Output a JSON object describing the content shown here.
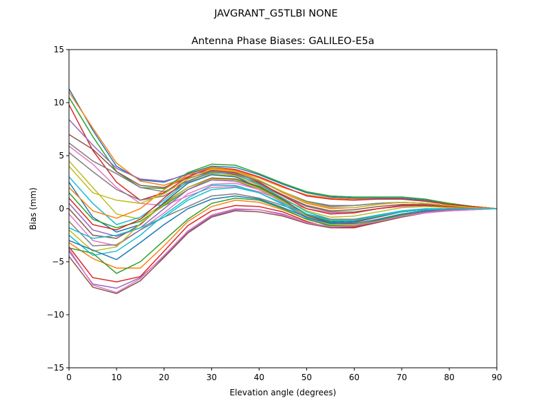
{
  "chart_data": {
    "type": "line",
    "suptitle": "JAVGRANT_G5TLBI NONE",
    "title": "Antenna Phase Biases: GALILEO-E5a",
    "xlabel": "Elevation angle (degrees)",
    "ylabel": "Bias (mm)",
    "xlim": [
      0,
      90
    ],
    "ylim": [
      -15,
      15
    ],
    "xticks": [
      "0",
      "10",
      "20",
      "30",
      "40",
      "50",
      "60",
      "70",
      "80",
      "90"
    ],
    "yticks": [
      "−15",
      "−10",
      "−5",
      "0",
      "5",
      "10",
      "15"
    ],
    "grid": false,
    "x": [
      0,
      5,
      10,
      15,
      20,
      25,
      30,
      35,
      40,
      45,
      50,
      55,
      60,
      65,
      70,
      75,
      80,
      85,
      90
    ],
    "colors": [
      "#1f77b4",
      "#ff7f0e",
      "#2ca02c",
      "#d62728",
      "#9467bd",
      "#8c564b",
      "#e377c2",
      "#7f7f7f",
      "#bcbd22",
      "#17becf"
    ],
    "series": [
      {
        "values": [
          11.3,
          7.4,
          4.0,
          2.7,
          2.5,
          3.3,
          4.0,
          3.9,
          3.2,
          2.3,
          1.5,
          1.1,
          1.0,
          1.0,
          1.0,
          0.8,
          0.5,
          0.2,
          0
        ]
      },
      {
        "values": [
          11.0,
          7.6,
          4.3,
          2.6,
          2.2,
          3.0,
          3.8,
          3.6,
          2.9,
          2.0,
          1.3,
          1.0,
          0.9,
          0.9,
          0.9,
          0.7,
          0.4,
          0.2,
          0
        ]
      },
      {
        "values": [
          10.5,
          6.8,
          3.5,
          2.0,
          1.9,
          3.4,
          4.2,
          4.1,
          3.3,
          2.4,
          1.6,
          1.2,
          1.1,
          1.1,
          1.1,
          0.9,
          0.5,
          0.2,
          0
        ]
      },
      {
        "values": [
          9.8,
          5.5,
          2.5,
          0.8,
          1.5,
          3.0,
          3.9,
          3.7,
          3.0,
          2.1,
          1.2,
          0.9,
          0.8,
          0.9,
          0.9,
          0.7,
          0.4,
          0.2,
          0
        ]
      },
      {
        "values": [
          8.4,
          6.0,
          3.8,
          2.8,
          2.6,
          3.2,
          3.6,
          3.4,
          2.6,
          1.6,
          0.6,
          0.2,
          0.3,
          0.5,
          0.6,
          0.5,
          0.3,
          0.1,
          0
        ]
      },
      {
        "values": [
          7.0,
          5.6,
          3.5,
          2.2,
          2.0,
          2.9,
          3.5,
          3.2,
          2.4,
          1.3,
          0.3,
          -0.2,
          -0.1,
          0.2,
          0.4,
          0.4,
          0.3,
          0.1,
          0
        ]
      },
      {
        "values": [
          5.9,
          4.2,
          2.0,
          0.5,
          0.3,
          1.2,
          2.0,
          2.1,
          1.6,
          0.8,
          0.0,
          -0.4,
          -0.3,
          0.0,
          0.2,
          0.3,
          0.2,
          0.1,
          0
        ]
      },
      {
        "values": [
          5.3,
          3.5,
          1.8,
          0.8,
          1.2,
          2.5,
          3.2,
          3.0,
          2.3,
          1.2,
          0.2,
          -0.3,
          -0.3,
          0.0,
          0.3,
          0.3,
          0.2,
          0.1,
          0
        ]
      },
      {
        "values": [
          4.5,
          2.0,
          -0.5,
          -1.0,
          0.5,
          2.4,
          3.3,
          3.1,
          2.2,
          1.0,
          -0.2,
          -0.8,
          -0.7,
          -0.3,
          0.1,
          0.2,
          0.1,
          0.1,
          0
        ]
      },
      {
        "values": [
          3.0,
          0.5,
          -1.5,
          -0.8,
          0.8,
          2.6,
          3.5,
          3.3,
          2.3,
          1.0,
          -0.3,
          -1.0,
          -1.0,
          -0.6,
          -0.2,
          0.0,
          0.0,
          0.0,
          0
        ]
      },
      {
        "values": [
          2.5,
          -0.8,
          -2.2,
          -1.5,
          0.6,
          2.4,
          3.2,
          3.0,
          2.0,
          0.7,
          -0.6,
          -1.3,
          -1.2,
          -0.8,
          -0.3,
          -0.1,
          0.0,
          0.0,
          0
        ]
      },
      {
        "values": [
          2.0,
          -0.2,
          -0.9,
          0.0,
          1.8,
          3.2,
          3.9,
          3.6,
          2.7,
          1.5,
          0.5,
          0.0,
          0.1,
          0.4,
          0.6,
          0.5,
          0.3,
          0.1,
          0
        ]
      },
      {
        "values": [
          1.5,
          -1.0,
          -1.8,
          -1.2,
          0.3,
          1.8,
          2.8,
          2.8,
          2.0,
          0.8,
          -0.5,
          -1.2,
          -1.1,
          -0.7,
          -0.3,
          -0.1,
          0.0,
          0.0,
          0
        ]
      },
      {
        "values": [
          1.0,
          -1.5,
          -2.0,
          -1.0,
          1.0,
          2.8,
          3.6,
          3.4,
          2.5,
          1.2,
          0.0,
          -0.5,
          -0.4,
          0.0,
          0.3,
          0.3,
          0.2,
          0.1,
          0
        ]
      },
      {
        "values": [
          0.5,
          -2.0,
          -2.6,
          -1.8,
          0.0,
          1.8,
          2.7,
          2.6,
          1.8,
          0.6,
          -0.8,
          -1.5,
          -1.5,
          -1.0,
          -0.5,
          -0.2,
          -0.1,
          0.0,
          0
        ]
      },
      {
        "values": [
          0.0,
          -2.5,
          -2.8,
          -1.5,
          0.5,
          2.0,
          2.9,
          2.8,
          2.1,
          0.9,
          -0.6,
          -1.4,
          -1.3,
          -0.8,
          -0.3,
          -0.1,
          0.0,
          0.0,
          0
        ]
      },
      {
        "values": [
          -0.5,
          -3.0,
          -3.5,
          -2.0,
          -0.4,
          1.4,
          2.3,
          2.4,
          1.8,
          0.6,
          -0.9,
          -1.6,
          -1.6,
          -1.1,
          -0.5,
          -0.2,
          -0.1,
          0.0,
          0
        ]
      },
      {
        "values": [
          -1.2,
          -3.5,
          -3.4,
          -2.0,
          -0.8,
          0.2,
          1.2,
          1.4,
          1.0,
          0.3,
          -0.5,
          -1.0,
          -1.0,
          -0.7,
          -0.3,
          -0.1,
          0.0,
          0.0,
          0
        ]
      },
      {
        "values": [
          -2.0,
          -4.0,
          -3.6,
          -1.4,
          0.4,
          2.0,
          2.8,
          2.7,
          1.9,
          0.7,
          -0.7,
          -1.5,
          -1.5,
          -1.0,
          -0.5,
          -0.2,
          -0.1,
          0.0,
          0
        ]
      },
      {
        "values": [
          -2.5,
          -4.4,
          -4.0,
          -2.5,
          -0.6,
          1.0,
          2.2,
          2.2,
          1.5,
          0.4,
          -0.9,
          -1.7,
          -1.7,
          -1.2,
          -0.6,
          -0.3,
          -0.1,
          0.0,
          0
        ]
      },
      {
        "values": [
          -3.0,
          -3.9,
          -4.8,
          -3.2,
          -1.5,
          0.0,
          0.9,
          1.2,
          0.9,
          0.1,
          -0.8,
          -1.4,
          -1.4,
          -1.0,
          -0.5,
          -0.2,
          -0.1,
          0.0,
          0
        ]
      },
      {
        "values": [
          -3.2,
          -4.7,
          -5.6,
          -5.6,
          -3.5,
          -1.2,
          0.2,
          0.8,
          0.6,
          -0.1,
          -1.0,
          -1.6,
          -1.6,
          -1.1,
          -0.6,
          -0.3,
          -0.1,
          0.0,
          0
        ]
      },
      {
        "values": [
          -3.7,
          -4.2,
          -6.1,
          -5.0,
          -3.0,
          -1.0,
          0.5,
          1.0,
          0.8,
          0.0,
          -1.0,
          -1.6,
          -1.6,
          -1.1,
          -0.6,
          -0.3,
          -0.1,
          0.0,
          0
        ]
      },
      {
        "values": [
          -3.6,
          -6.5,
          -6.9,
          -6.4,
          -4.0,
          -1.6,
          -0.2,
          0.3,
          0.2,
          -0.3,
          -1.2,
          -1.8,
          -1.8,
          -1.3,
          -0.7,
          -0.3,
          -0.1,
          0.0,
          0
        ]
      },
      {
        "values": [
          -4.0,
          -7.1,
          -7.5,
          -6.5,
          -4.5,
          -2.2,
          -0.7,
          -0.1,
          -0.1,
          -0.5,
          -1.3,
          -1.7,
          -1.7,
          -1.2,
          -0.7,
          -0.3,
          -0.1,
          0.0,
          0
        ]
      },
      {
        "values": [
          -4.5,
          -7.4,
          -8.0,
          -6.8,
          -4.6,
          -2.3,
          -0.8,
          -0.2,
          -0.3,
          -0.7,
          -1.4,
          -1.8,
          -1.7,
          -1.3,
          -0.8,
          -0.4,
          -0.2,
          -0.1,
          0
        ]
      },
      {
        "values": [
          -3.8,
          -7.2,
          -7.9,
          -6.6,
          -4.4,
          -2.1,
          -0.6,
          0.0,
          -0.1,
          -0.6,
          -1.3,
          -1.7,
          -1.6,
          -1.2,
          -0.7,
          -0.4,
          -0.2,
          -0.1,
          0
        ]
      },
      {
        "values": [
          6.2,
          4.5,
          3.3,
          2.0,
          1.6,
          2.6,
          3.4,
          3.3,
          2.6,
          1.6,
          0.7,
          0.3,
          0.3,
          0.5,
          0.6,
          0.5,
          0.3,
          0.1,
          0
        ]
      },
      {
        "values": [
          4.0,
          1.5,
          0.8,
          0.5,
          1.4,
          2.8,
          3.7,
          3.5,
          2.7,
          1.6,
          0.6,
          0.1,
          0.1,
          0.4,
          0.6,
          0.5,
          0.3,
          0.1,
          0
        ]
      },
      {
        "values": [
          -1.8,
          -2.8,
          -2.5,
          -1.8,
          -0.8,
          0.8,
          1.8,
          2.0,
          1.5,
          0.5,
          -0.5,
          -1.1,
          -1.1,
          -0.7,
          -0.3,
          -0.1,
          0.0,
          0.0,
          0
        ]
      }
    ]
  }
}
